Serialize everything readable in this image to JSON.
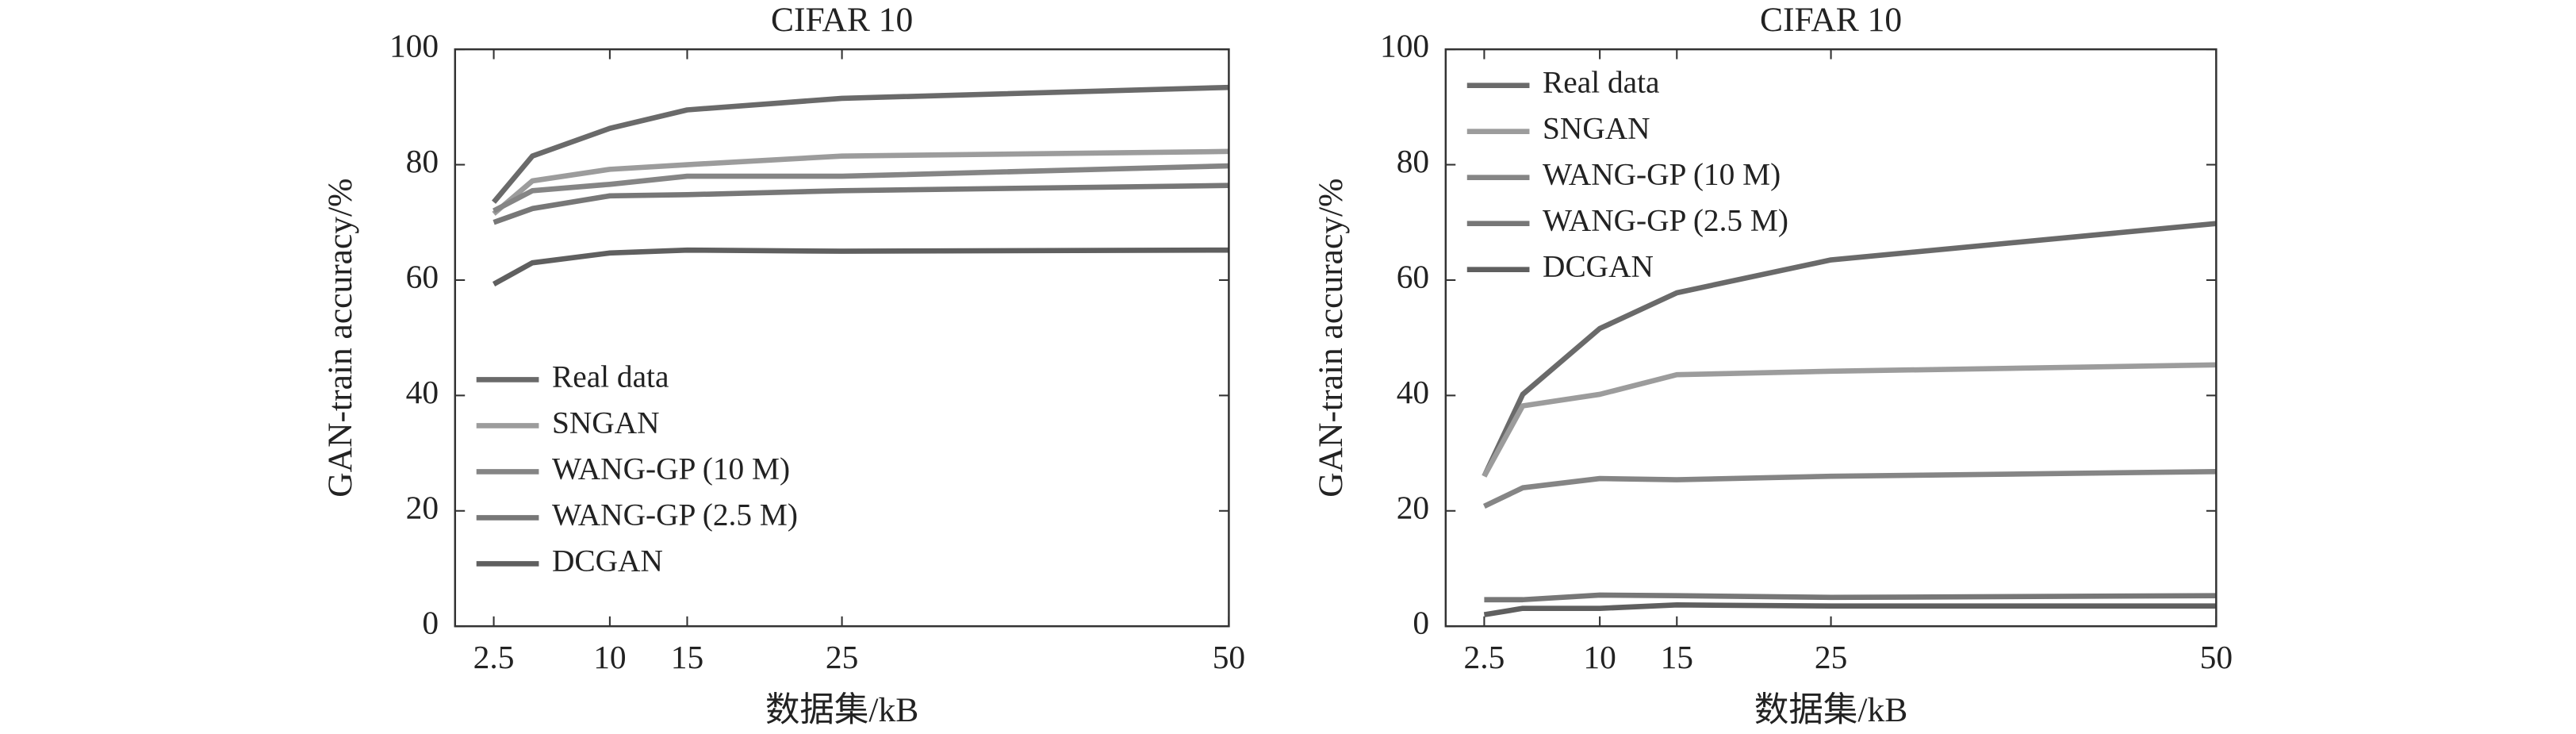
{
  "chart_data": [
    {
      "type": "line",
      "title": "CIFAR 10",
      "xlabel": "数据集/kB",
      "ylabel": "GAN-train accuracy/%",
      "x": [
        2.5,
        5,
        10,
        15,
        25,
        50
      ],
      "xlim": [
        0,
        50
      ],
      "xticks": [
        2.5,
        10,
        15,
        25,
        50
      ],
      "ylim": [
        0,
        100
      ],
      "yticks": [
        0,
        20,
        40,
        60,
        80,
        100
      ],
      "legend": "lower left",
      "series": [
        {
          "name": "Real data",
          "color": "#6a6a6a",
          "values": [
            73.5,
            81.5,
            86.3,
            89.5,
            91.5,
            93.4
          ]
        },
        {
          "name": "SNGAN",
          "color": "#9c9c9c",
          "values": [
            71.5,
            77.2,
            79.2,
            80,
            81.5,
            82.3
          ]
        },
        {
          "name": "WANG-GP (10 M)",
          "color": "#858585",
          "values": [
            72,
            75.5,
            76.6,
            78,
            78,
            79.8
          ]
        },
        {
          "name": "WANG-GP (2.5 M)",
          "color": "#777777",
          "values": [
            70,
            72.4,
            74.6,
            74.8,
            75.5,
            76.4
          ]
        },
        {
          "name": "DCGAN",
          "color": "#5f5f5f",
          "values": [
            59.3,
            63,
            64.7,
            65.2,
            65,
            65.2
          ]
        }
      ]
    },
    {
      "type": "line",
      "title": "CIFAR 10",
      "xlabel": "数据集/kB",
      "ylabel": "GAN-train accuracy/%",
      "x": [
        2.5,
        5,
        10,
        15,
        25,
        50
      ],
      "xlim": [
        0,
        50
      ],
      "xticks": [
        2.5,
        10,
        15,
        25,
        50
      ],
      "ylim": [
        0,
        100
      ],
      "yticks": [
        0,
        20,
        40,
        60,
        80,
        100
      ],
      "legend": "upper left",
      "series": [
        {
          "name": "Real data",
          "color": "#6a6a6a",
          "values": [
            26,
            40.2,
            51.6,
            57.8,
            63.5,
            69.8
          ]
        },
        {
          "name": "SNGAN",
          "color": "#9c9c9c",
          "values": [
            26,
            38.2,
            40.2,
            43.6,
            44.2,
            45.3
          ]
        },
        {
          "name": "WANG-GP (10 M)",
          "color": "#858585",
          "values": [
            20.8,
            24,
            25.6,
            25.4,
            26,
            26.8
          ]
        },
        {
          "name": "WANG-GP (2.5 M)",
          "color": "#777777",
          "values": [
            4.6,
            4.6,
            5.4,
            5.3,
            5,
            5.3
          ]
        },
        {
          "name": "DCGAN",
          "color": "#5f5f5f",
          "values": [
            2,
            3.1,
            3.1,
            3.7,
            3.5,
            3.5
          ]
        }
      ]
    }
  ]
}
